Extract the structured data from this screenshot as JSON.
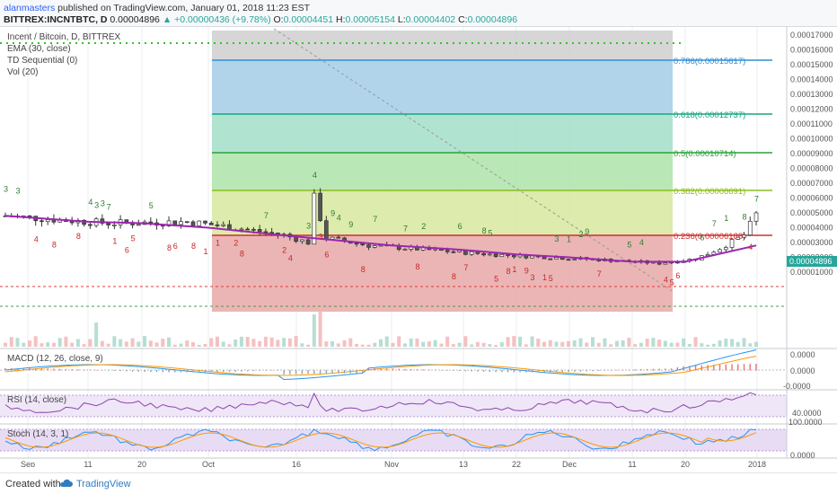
{
  "header": {
    "publisher": "alanmasters",
    "published_text": "published on TradingView.com, January 01, 2018 11:23 EST",
    "symbol": "BITTREX:INCNTBTC, D",
    "last": "0.00004896",
    "change": "+0.00000436 (+9.78%)",
    "o_label": "O:",
    "o_val": "0.00004451",
    "h_label": "H:",
    "h_val": "0.00005154",
    "l_label": "L:",
    "l_val": "0.00004402",
    "c_label": "C:",
    "c_val": "0.00004896"
  },
  "legend": {
    "title": "Incent / Bitcoin, D, BITTREX",
    "ema": "EMA (30, close)",
    "td": "TD Sequential (0)",
    "vol": "Vol (20)",
    "macd": "MACD (12, 26, close, 9)",
    "rsi": "RSI (14, close)",
    "stoch": "Stoch (14, 3, 1)"
  },
  "price_axis": [
    "0.00017000",
    "0.00016000",
    "0.00015000",
    "0.00014000",
    "0.00013000",
    "0.00012000",
    "0.00011000",
    "0.00010000",
    "0.00009000",
    "0.00008000",
    "0.00007000",
    "0.00006000",
    "0.00005000",
    "0.00004000",
    "0.00003000",
    "0.00002000",
    "0.00001000"
  ],
  "last_price_label": "0.00004896",
  "macd_axis": [
    "0.0000",
    "0.0000",
    "-0.0000"
  ],
  "rsi_axis": [
    "40.0000"
  ],
  "stoch_axis": [
    "100.0000",
    "0.0000"
  ],
  "time_axis": [
    "Sep",
    "11",
    "20",
    "Oct",
    "16",
    "Nov",
    "13",
    "22",
    "Dec",
    "11",
    "20",
    "2018"
  ],
  "fib_levels": [
    {
      "label": "0.786(0.00015617)",
      "color": "#2f8fd4"
    },
    {
      "label": "0.618(0.00012737)",
      "color": "#18a67e"
    },
    {
      "label": "0.5(0.00010714)",
      "color": "#2aa33a"
    },
    {
      "label": "0.382(0.00008691)",
      "color": "#8cbd1f"
    },
    {
      "label": "0.236(0.00006188)",
      "color": "#d0302e"
    }
  ],
  "footer": {
    "created_with": "Created with",
    "brand": "TradingView"
  },
  "chart_data": {
    "type": "line",
    "title": "Incent / Bitcoin, D, BITTREX",
    "x": [
      "Sep",
      "11",
      "20",
      "Oct",
      "16",
      "Nov",
      "13",
      "22",
      "Dec",
      "11",
      "20",
      "2018"
    ],
    "series": [
      {
        "name": "EMA (30, close)",
        "color": "#9c27b0",
        "values": [
          4.8e-05,
          4.4e-05,
          4.3e-05,
          4e-05,
          3.4e-05,
          2.8e-05,
          2.5e-05,
          2.2e-05,
          2e-05,
          1.7e-05,
          1.7e-05,
          2.8e-05
        ]
      }
    ],
    "ylim": [
      1e-05,
      0.00017
    ],
    "fibonacci": [
      {
        "level": 0.786,
        "price": 0.00015617
      },
      {
        "level": 0.618,
        "price": 0.00012737
      },
      {
        "level": 0.5,
        "price": 0.00010714
      },
      {
        "level": 0.382,
        "price": 8.691e-05
      },
      {
        "level": 0.236,
        "price": 6.188e-05
      }
    ],
    "last_close": 4.896e-05
  }
}
